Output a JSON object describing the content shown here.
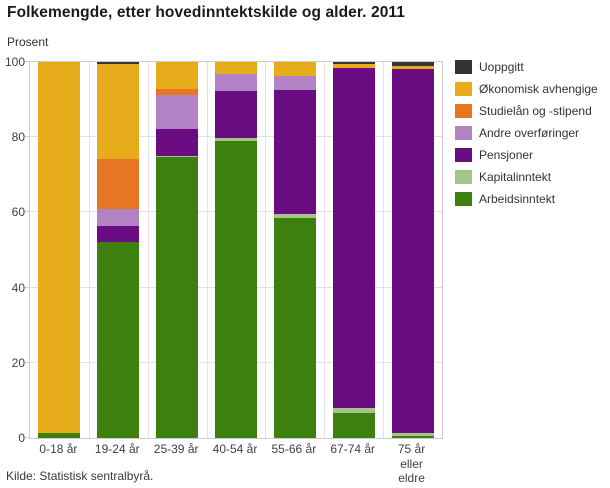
{
  "source": "Kilde: Statistisk sentralbyrå.",
  "chart_data": {
    "type": "bar",
    "stacked": true,
    "title": "Folkemengde, etter hovedinntektskilde og alder. 2011",
    "ylabel": "Prosent",
    "xlabel": "",
    "ylim": [
      0,
      100
    ],
    "yticks": [
      0,
      20,
      40,
      60,
      80,
      100
    ],
    "grid": true,
    "legend_position": "right",
    "stack_note": "bars stack bottom-to-top in reverse of series order (Arbeidsinntekt at bottom, Uoppgitt on top)",
    "categories": [
      "0-18 år",
      "19-24 år",
      "25-39 år",
      "40-54 år",
      "55-66 år",
      "67-74 år",
      "75 år\neller eldre"
    ],
    "series": [
      {
        "name": "Uoppgitt",
        "color": "#333333",
        "values": [
          0,
          0.5,
          0,
          0,
          0,
          0.5,
          1.1
        ]
      },
      {
        "name": "Økonomisk avhengige",
        "color": "#e6ac1c",
        "values": [
          98.7,
          25.3,
          7.2,
          3.3,
          3.8,
          1.2,
          0.8
        ]
      },
      {
        "name": "Studielån og -stipend",
        "color": "#e67524",
        "values": [
          0,
          13.3,
          1.6,
          0,
          0,
          0,
          0
        ]
      },
      {
        "name": "Andre overføringer",
        "color": "#b182c4",
        "values": [
          0,
          4.4,
          8.9,
          4.3,
          3.6,
          0,
          0
        ]
      },
      {
        "name": "Pensjoner",
        "color": "#6a0d83",
        "values": [
          0,
          4.5,
          7.3,
          12.5,
          33.1,
          90.4,
          96.8
        ]
      },
      {
        "name": "Kapitalinntekt",
        "color": "#a5c488",
        "values": [
          0,
          0,
          0.3,
          1.0,
          1.1,
          1.2,
          0.8
        ]
      },
      {
        "name": "Arbeidsinntekt",
        "color": "#3e8010",
        "values": [
          1.3,
          52.0,
          74.7,
          78.9,
          58.4,
          6.7,
          0.5
        ]
      }
    ]
  }
}
